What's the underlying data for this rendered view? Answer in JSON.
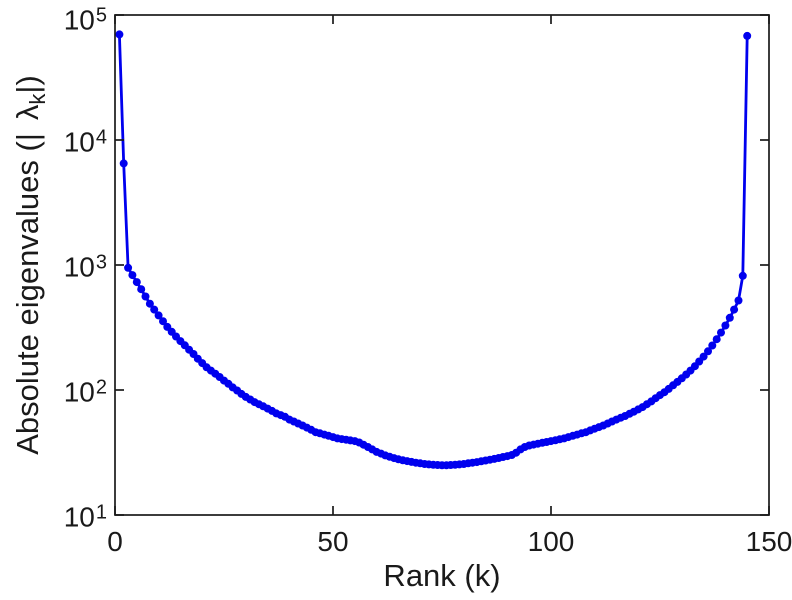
{
  "style": {
    "line_color": "#0000EE",
    "axes_color": "#1a1a1a",
    "text_color": "#1a1a1a",
    "background": "#ffffff",
    "line_width": 2.8,
    "marker_radius": 4
  },
  "chart_data": {
    "type": "line",
    "title": "",
    "xlabel": "Rank (k)",
    "ylabel": "Absolute eigenvalues (|λ_k|)",
    "ylabel_parts": {
      "prefix": "Absolute eigenvalues (|",
      "symbol": "λ",
      "subscript": "k",
      "suffix": "|)"
    },
    "xlim": [
      0,
      150
    ],
    "ylim": [
      10,
      100000
    ],
    "yscale": "log",
    "grid": false,
    "legend": null,
    "x_ticks": [
      0,
      50,
      100,
      150
    ],
    "x_tick_labels": [
      "0",
      "50",
      "100",
      "150"
    ],
    "y_ticks": [
      10,
      100,
      1000,
      10000,
      100000
    ],
    "y_tick_base": "10",
    "y_tick_exponents": [
      "1",
      "2",
      "3",
      "4",
      "5"
    ],
    "series": [
      {
        "name": "absolute-eigenvalues",
        "marker": "circle",
        "x": [
          1,
          2,
          3,
          4,
          5,
          6,
          7,
          8,
          9,
          10,
          11,
          12,
          13,
          14,
          15,
          16,
          17,
          18,
          19,
          20,
          21,
          22,
          23,
          24,
          25,
          26,
          27,
          28,
          29,
          30,
          31,
          32,
          33,
          34,
          35,
          36,
          37,
          38,
          39,
          40,
          41,
          42,
          43,
          44,
          45,
          46,
          47,
          48,
          49,
          50,
          51,
          52,
          53,
          54,
          55,
          56,
          57,
          58,
          59,
          60,
          61,
          62,
          63,
          64,
          65,
          66,
          67,
          68,
          69,
          70,
          71,
          72,
          73,
          74,
          75,
          76,
          77,
          78,
          79,
          80,
          81,
          82,
          83,
          84,
          85,
          86,
          87,
          88,
          89,
          90,
          91,
          92,
          93,
          94,
          95,
          96,
          97,
          98,
          99,
          100,
          101,
          102,
          103,
          104,
          105,
          106,
          107,
          108,
          109,
          110,
          111,
          112,
          113,
          114,
          115,
          116,
          117,
          118,
          119,
          120,
          121,
          122,
          123,
          124,
          125,
          126,
          127,
          128,
          129,
          130,
          131,
          132,
          133,
          134,
          135,
          136,
          137,
          138,
          139,
          140,
          141,
          142,
          143,
          144,
          145
        ],
        "y": [
          70000,
          6500,
          950,
          830,
          730,
          640,
          560,
          490,
          440,
          395,
          355,
          320,
          292,
          268,
          246,
          228,
          210,
          194,
          178,
          164,
          152,
          143,
          135,
          127,
          119,
          112,
          105,
          99,
          93,
          88,
          84,
          80,
          77,
          74,
          71,
          68,
          65,
          63,
          61,
          58,
          56,
          54,
          52,
          50,
          48,
          46,
          45,
          44,
          43,
          42,
          41,
          40.5,
          40,
          39.5,
          39,
          38,
          36.5,
          35,
          33.5,
          32,
          31,
          30,
          29.2,
          28.5,
          27.9,
          27.4,
          27,
          26.6,
          26.2,
          25.9,
          25.6,
          25.4,
          25.2,
          25.1,
          25,
          25,
          25.1,
          25.2,
          25.4,
          25.6,
          25.9,
          26.2,
          26.5,
          26.9,
          27.3,
          27.7,
          28.1,
          28.6,
          29.1,
          29.6,
          30.2,
          31.5,
          33.5,
          35,
          36,
          36.6,
          37.2,
          37.8,
          38.4,
          39,
          39.6,
          40.3,
          41,
          42,
          43,
          44,
          45,
          46,
          47.5,
          49,
          50.5,
          52,
          54,
          56,
          58,
          60,
          62,
          64.5,
          67,
          70,
          73,
          77,
          81,
          86,
          91,
          96,
          102,
          109,
          116,
          124,
          133,
          143,
          155,
          169,
          185,
          204,
          227,
          255,
          288,
          328,
          378,
          440,
          520,
          820,
          68000
        ]
      }
    ]
  }
}
